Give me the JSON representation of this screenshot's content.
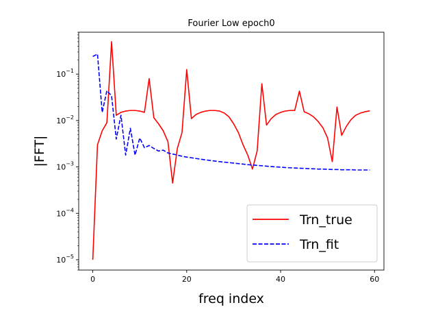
{
  "chart_data": {
    "type": "line",
    "title": "Fourier Low epoch0",
    "xlabel": "freq index",
    "ylabel": "|FFT|",
    "xlim": [
      -3,
      62
    ],
    "ylim": [
      6e-06,
      0.8
    ],
    "yscale": "log",
    "xticks": [
      0,
      20,
      40,
      60
    ],
    "yticks": [
      {
        "value": 1e-05,
        "base": "10",
        "exp": "−5"
      },
      {
        "value": 0.0001,
        "base": "10",
        "exp": "−4"
      },
      {
        "value": 0.001,
        "base": "10",
        "exp": "−3"
      },
      {
        "value": 0.01,
        "base": "10",
        "exp": "−2"
      },
      {
        "value": 0.1,
        "base": "10",
        "exp": "−1"
      }
    ],
    "grid": false,
    "legend_position": "lower-right",
    "x": [
      0,
      1,
      2,
      3,
      4,
      5,
      6,
      7,
      8,
      9,
      10,
      11,
      12,
      13,
      14,
      15,
      16,
      17,
      18,
      19,
      20,
      21,
      22,
      23,
      24,
      25,
      26,
      27,
      28,
      29,
      30,
      31,
      32,
      33,
      34,
      35,
      36,
      37,
      38,
      39,
      40,
      41,
      42,
      43,
      44,
      45,
      46,
      47,
      48,
      49,
      50,
      51,
      52,
      53,
      54,
      55,
      56,
      57,
      58,
      59
    ],
    "series": [
      {
        "name": "Trn_true",
        "color": "#ff0000",
        "dash": "solid",
        "values": [
          1e-05,
          0.003,
          0.006,
          0.009,
          0.5,
          0.013,
          0.015,
          0.016,
          0.0165,
          0.0165,
          0.016,
          0.015,
          0.08,
          0.0115,
          0.0085,
          0.006,
          0.0035,
          0.00045,
          0.0025,
          0.0055,
          0.125,
          0.011,
          0.0135,
          0.015,
          0.016,
          0.0165,
          0.0165,
          0.016,
          0.0145,
          0.012,
          0.0085,
          0.0055,
          0.003,
          0.0018,
          0.0009,
          0.0022,
          0.062,
          0.008,
          0.011,
          0.0135,
          0.015,
          0.016,
          0.0165,
          0.0165,
          0.043,
          0.0155,
          0.014,
          0.012,
          0.0095,
          0.007,
          0.0042,
          0.0013,
          0.0195,
          0.0048,
          0.0075,
          0.0105,
          0.013,
          0.0145,
          0.0155,
          0.0162
        ]
      },
      {
        "name": "Trn_fit",
        "color": "#0000ff",
        "dash": "dashed",
        "values": [
          0.24,
          0.27,
          0.015,
          0.044,
          0.034,
          0.004,
          0.013,
          0.0018,
          0.0068,
          0.0018,
          0.0042,
          0.0026,
          0.0029,
          0.0025,
          0.0022,
          0.0023,
          0.002,
          0.0019,
          0.0018,
          0.0017,
          0.00163,
          0.00158,
          0.00152,
          0.00147,
          0.00142,
          0.00138,
          0.00134,
          0.0013,
          0.00127,
          0.00124,
          0.00121,
          0.00118,
          0.00115,
          0.00112,
          0.0011,
          0.00108,
          0.00106,
          0.00104,
          0.00102,
          0.001,
          0.00099,
          0.00097,
          0.00096,
          0.00095,
          0.00094,
          0.00093,
          0.00092,
          0.00091,
          0.0009,
          0.0009,
          0.00089,
          0.00088,
          0.00088,
          0.00087,
          0.00087,
          0.00087,
          0.00086,
          0.00086,
          0.00086,
          0.00086
        ]
      }
    ]
  }
}
